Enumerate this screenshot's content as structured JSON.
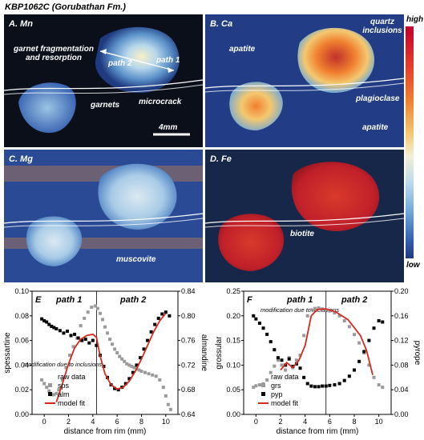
{
  "figure": {
    "title": "KBP1062C (Gorubathan Fm.)",
    "colorbar": {
      "high_label": "high",
      "low_label": "low"
    }
  },
  "panels": [
    {
      "id": "A",
      "label": "A. Mn",
      "annotations": [
        "garnet fragmentation and resorption",
        "path 2",
        "path 1",
        "microcrack",
        "garnets"
      ],
      "scale_bar": "4mm"
    },
    {
      "id": "B",
      "label": "B. Ca",
      "annotations": [
        "apatite",
        "quartz inclusions",
        "plagioclase",
        "apatite"
      ]
    },
    {
      "id": "C",
      "label": "C. Mg",
      "annotations": [
        "muscovite"
      ]
    },
    {
      "id": "D",
      "label": "D. Fe",
      "annotations": [
        "biotite"
      ]
    }
  ],
  "chart_data": [
    {
      "id": "E",
      "type": "scatter",
      "panel_label": "E",
      "xlabel": "distance from rim (mm)",
      "ylabel_left": "spessartine",
      "ylabel_right": "almandine",
      "xlim": [
        -1,
        11
      ],
      "ylim_left": [
        0.0,
        0.1
      ],
      "ylim_right": [
        0.64,
        0.84
      ],
      "x_ticks": [
        0,
        2,
        4,
        6,
        8,
        10
      ],
      "y_ticks_left": [
        0.0,
        0.02,
        0.04,
        0.06,
        0.08,
        0.1
      ],
      "y_ticks_right": [
        0.64,
        0.68,
        0.72,
        0.76,
        0.8,
        0.84
      ],
      "path_divider_x": 4.3,
      "annotations": [
        "path 1",
        "path 2",
        "modification due to inclusions"
      ],
      "legend": {
        "title": "raw data",
        "entries": [
          "sps",
          "alm",
          "model fit"
        ]
      },
      "series": [
        {
          "name": "sps",
          "axis": "left",
          "marker": "square-gray",
          "x": [
            -0.2,
            0.0,
            0.2,
            0.4,
            0.6,
            0.8,
            1.0,
            1.2,
            1.5,
            1.8,
            2.1,
            2.4,
            2.7,
            3.0,
            3.3,
            3.6,
            3.9,
            4.2,
            4.4,
            4.6,
            4.8,
            5.0,
            5.2,
            5.4,
            5.6,
            5.8,
            6.0,
            6.2,
            6.4,
            6.6,
            6.8,
            7.0,
            7.2,
            7.4,
            7.6,
            7.8,
            8.0,
            8.3,
            8.6,
            8.9,
            9.2,
            9.5,
            9.8,
            10.0,
            10.2,
            10.4
          ],
          "y": [
            0.028,
            0.025,
            0.022,
            0.019,
            0.016,
            0.016,
            0.017,
            0.02,
            0.028,
            0.038,
            0.048,
            0.055,
            0.062,
            0.072,
            0.078,
            0.083,
            0.087,
            0.088,
            0.086,
            0.082,
            0.077,
            0.071,
            0.066,
            0.061,
            0.057,
            0.053,
            0.05,
            0.047,
            0.045,
            0.043,
            0.041,
            0.04,
            0.039,
            0.038,
            0.037,
            0.036,
            0.035,
            0.034,
            0.033,
            0.032,
            0.031,
            0.028,
            0.022,
            0.015,
            0.008,
            0.004
          ]
        },
        {
          "name": "alm",
          "axis": "right",
          "marker": "square-black",
          "x": [
            -0.2,
            0.0,
            0.2,
            0.4,
            0.6,
            0.8,
            1.0,
            1.3,
            1.6,
            1.9,
            2.2,
            2.5,
            2.8,
            3.1,
            3.4,
            3.7,
            4.0,
            4.3,
            4.6,
            4.9,
            5.2,
            5.5,
            5.8,
            6.1,
            6.4,
            6.7,
            7.0,
            7.3,
            7.6,
            7.9,
            8.2,
            8.5,
            8.8,
            9.1,
            9.4,
            9.7,
            10.0,
            10.3
          ],
          "y": [
            0.795,
            0.792,
            0.79,
            0.786,
            0.783,
            0.781,
            0.779,
            0.776,
            0.772,
            0.775,
            0.768,
            0.77,
            0.764,
            0.76,
            0.762,
            0.756,
            0.76,
            0.752,
            0.736,
            0.718,
            0.7,
            0.688,
            0.682,
            0.68,
            0.684,
            0.69,
            0.698,
            0.708,
            0.72,
            0.732,
            0.746,
            0.76,
            0.774,
            0.786,
            0.796,
            0.803,
            0.806,
            0.8
          ]
        },
        {
          "name": "model fit",
          "axis": "right",
          "marker": "line-red",
          "x": [
            1.0,
            1.5,
            2.0,
            2.5,
            3.0,
            3.5,
            4.0,
            4.3,
            4.6,
            5.0,
            5.5,
            6.0,
            6.5,
            7.0,
            7.5,
            8.0,
            8.5,
            9.0,
            9.5,
            10.0
          ],
          "y": [
            0.66,
            0.69,
            0.722,
            0.748,
            0.762,
            0.768,
            0.77,
            0.765,
            0.735,
            0.706,
            0.688,
            0.681,
            0.684,
            0.694,
            0.71,
            0.73,
            0.752,
            0.774,
            0.792,
            0.804
          ]
        }
      ]
    },
    {
      "id": "F",
      "type": "scatter",
      "panel_label": "F",
      "xlabel": "distance from rim (mm)",
      "ylabel_left": "grossular",
      "ylabel_right": "pyrope",
      "xlim": [
        -1,
        11
      ],
      "ylim_left": [
        0.0,
        0.25
      ],
      "ylim_right": [
        0.0,
        0.2
      ],
      "x_ticks": [
        0,
        2,
        4,
        6,
        8,
        10
      ],
      "y_ticks_left": [
        0.0,
        0.05,
        0.1,
        0.15,
        0.2,
        0.25
      ],
      "y_ticks_right": [
        0.0,
        0.04,
        0.08,
        0.12,
        0.16,
        0.2
      ],
      "path_divider_x": 5.7,
      "annotations": [
        "path 1",
        "path 2",
        "modification due to inclusions"
      ],
      "legend": {
        "title": "raw data",
        "entries": [
          "grs",
          "pyp",
          "model fit"
        ]
      },
      "series": [
        {
          "name": "grs",
          "axis": "left",
          "marker": "square-gray",
          "x": [
            -0.2,
            0.0,
            0.3,
            0.6,
            0.9,
            1.2,
            1.5,
            1.8,
            2.1,
            2.4,
            2.7,
            3.0,
            3.3,
            3.6,
            3.9,
            4.2,
            4.5,
            4.8,
            5.1,
            5.4,
            5.7,
            6.0,
            6.4,
            6.8,
            7.2,
            7.6,
            8.0,
            8.4,
            8.8,
            9.2,
            9.6,
            10.0,
            10.3
          ],
          "y": [
            0.055,
            0.058,
            0.06,
            0.062,
            0.07,
            0.085,
            0.098,
            0.11,
            0.1,
            0.09,
            0.115,
            0.095,
            0.11,
            0.12,
            0.16,
            0.2,
            0.212,
            0.215,
            0.216,
            0.214,
            0.212,
            0.21,
            0.206,
            0.2,
            0.19,
            0.178,
            0.162,
            0.145,
            0.125,
            0.1,
            0.075,
            0.06,
            0.055
          ]
        },
        {
          "name": "pyp",
          "axis": "right",
          "marker": "square-black",
          "x": [
            -0.2,
            0.0,
            0.3,
            0.6,
            0.9,
            1.2,
            1.5,
            1.8,
            2.1,
            2.4,
            2.7,
            3.0,
            3.3,
            3.6,
            3.9,
            4.2,
            4.5,
            4.8,
            5.1,
            5.4,
            5.7,
            6.0,
            6.4,
            6.8,
            7.2,
            7.6,
            8.0,
            8.4,
            8.8,
            9.2,
            9.6,
            10.0,
            10.3
          ],
          "y": [
            0.16,
            0.155,
            0.148,
            0.14,
            0.13,
            0.118,
            0.105,
            0.092,
            0.088,
            0.08,
            0.09,
            0.078,
            0.082,
            0.075,
            0.06,
            0.05,
            0.046,
            0.045,
            0.045,
            0.046,
            0.046,
            0.047,
            0.048,
            0.05,
            0.055,
            0.062,
            0.072,
            0.086,
            0.102,
            0.12,
            0.14,
            0.152,
            0.15
          ]
        },
        {
          "name": "model fit",
          "axis": "left",
          "marker": "line-red",
          "x": [
            2.0,
            2.5,
            3.0,
            3.5,
            4.0,
            4.5,
            5.0,
            5.7,
            6.5,
            7.5,
            8.5,
            9.0,
            9.5
          ],
          "y": [
            0.09,
            0.105,
            0.095,
            0.11,
            0.14,
            0.2,
            0.213,
            0.214,
            0.208,
            0.192,
            0.16,
            0.13,
            0.08
          ]
        }
      ]
    }
  ]
}
